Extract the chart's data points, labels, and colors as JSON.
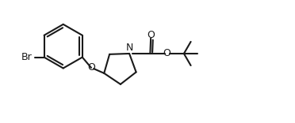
{
  "bg_color": "#ffffff",
  "line_color": "#1a1a1a",
  "line_width": 1.5,
  "font_size_label": 9.0,
  "fig_width": 3.72,
  "fig_height": 1.56,
  "dpi": 100,
  "xlim": [
    0.0,
    9.5
  ],
  "ylim": [
    0.5,
    4.5
  ]
}
